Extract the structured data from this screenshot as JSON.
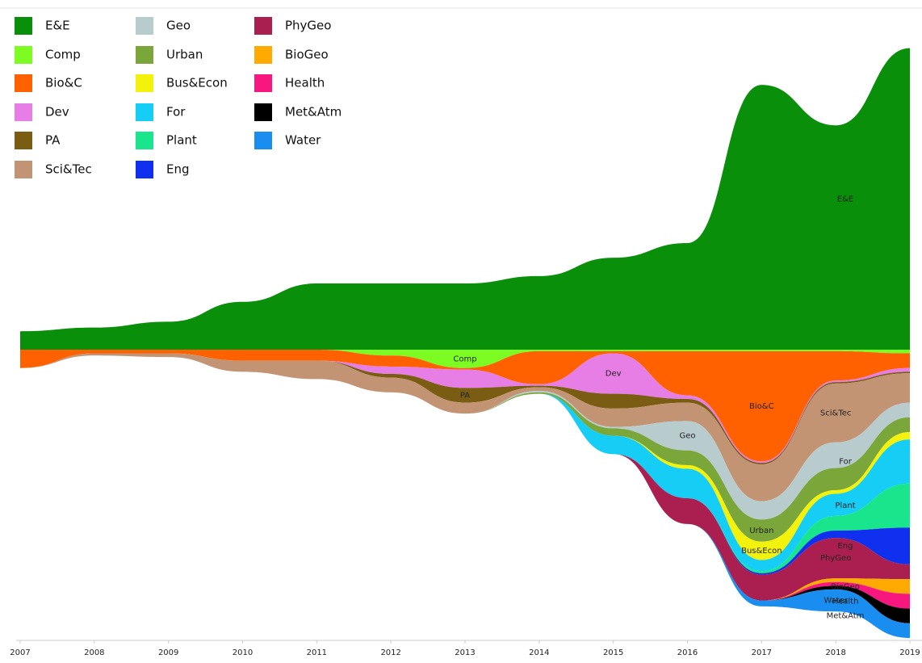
{
  "chart_data": {
    "type": "stream",
    "x": [
      2007,
      2008,
      2009,
      2010,
      2011,
      2012,
      2013,
      2014,
      2015,
      2016,
      2017,
      2018,
      2019
    ],
    "xlim": [
      2007,
      2019
    ],
    "xticks": [
      2007,
      2008,
      2009,
      2010,
      2011,
      2012,
      2013,
      2014,
      2015,
      2016,
      2017,
      2018,
      2019
    ],
    "series": [
      {
        "name": "E&E",
        "color": "#0a8f0a",
        "values": [
          25,
          30,
          38,
          65,
          90,
          90,
          90,
          100,
          125,
          145,
          360,
          305,
          410
        ]
      },
      {
        "name": "Comp",
        "color": "#7cfc22",
        "values": [
          0,
          0,
          0,
          0,
          0,
          8,
          25,
          2,
          2,
          2,
          2,
          2,
          5
        ]
      },
      {
        "name": "Bio&C",
        "color": "#ff6000",
        "values": [
          25,
          5,
          5,
          15,
          15,
          15,
          2,
          45,
          3,
          60,
          150,
          40,
          20
        ]
      },
      {
        "name": "Dev",
        "color": "#e67ee6",
        "values": [
          0,
          0,
          0,
          0,
          0,
          10,
          25,
          2,
          55,
          5,
          2,
          2,
          5
        ]
      },
      {
        "name": "PA",
        "color": "#7a5c12",
        "values": [
          0,
          0,
          0,
          0,
          0,
          5,
          20,
          2,
          20,
          5,
          2,
          2,
          2
        ]
      },
      {
        "name": "Sci&Tec",
        "color": "#c39474",
        "values": [
          0,
          3,
          5,
          15,
          25,
          20,
          15,
          5,
          25,
          25,
          50,
          80,
          40
        ]
      },
      {
        "name": "Geo",
        "color": "#b8ccce",
        "values": [
          0,
          0,
          0,
          0,
          0,
          0,
          0,
          2,
          2,
          40,
          25,
          35,
          20
        ]
      },
      {
        "name": "Urban",
        "color": "#7aa63a",
        "values": [
          0,
          0,
          0,
          0,
          0,
          0,
          0,
          2,
          10,
          20,
          30,
          30,
          20
        ]
      },
      {
        "name": "Bus&Econ",
        "color": "#f2f20d",
        "values": [
          0,
          0,
          0,
          0,
          0,
          0,
          0,
          0,
          0,
          5,
          25,
          5,
          10
        ]
      },
      {
        "name": "For",
        "color": "#16cdf5",
        "values": [
          0,
          0,
          0,
          0,
          0,
          0,
          0,
          0,
          25,
          40,
          15,
          30,
          60
        ]
      },
      {
        "name": "Plant",
        "color": "#19e68c",
        "values": [
          0,
          0,
          0,
          0,
          0,
          0,
          0,
          0,
          0,
          0,
          3,
          20,
          60
        ]
      },
      {
        "name": "Eng",
        "color": "#1030f0",
        "values": [
          0,
          0,
          0,
          0,
          0,
          0,
          0,
          0,
          0,
          0,
          2,
          10,
          50
        ]
      },
      {
        "name": "PhyGeo",
        "color": "#aa1f4f",
        "values": [
          0,
          0,
          0,
          0,
          0,
          0,
          0,
          0,
          0,
          35,
          35,
          55,
          20
        ]
      },
      {
        "name": "BioGeo",
        "color": "#ffaa00",
        "values": [
          0,
          0,
          0,
          0,
          0,
          0,
          0,
          0,
          0,
          0,
          0,
          5,
          20
        ]
      },
      {
        "name": "Health",
        "color": "#f7177f",
        "values": [
          0,
          0,
          0,
          0,
          0,
          0,
          0,
          0,
          0,
          0,
          0,
          5,
          20
        ]
      },
      {
        "name": "Met&Atm",
        "color": "#000000",
        "values": [
          0,
          0,
          0,
          0,
          0,
          0,
          0,
          0,
          0,
          0,
          0,
          5,
          20
        ]
      },
      {
        "name": "Water",
        "color": "#1a8ef0",
        "values": [
          0,
          0,
          0,
          0,
          0,
          0,
          0,
          0,
          0,
          0,
          8,
          30,
          20
        ]
      }
    ],
    "legend": "top-left"
  }
}
